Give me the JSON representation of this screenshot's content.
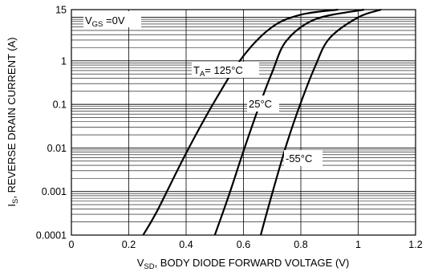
{
  "chart_data": {
    "type": "line",
    "x_scale": "linear",
    "y_scale": "log",
    "xlim": [
      0,
      1.2
    ],
    "ylim": [
      0.0001,
      15
    ],
    "x_ticks": [
      "0",
      "0.2",
      "0.4",
      "0.6",
      "0.8",
      "1",
      "1.2"
    ],
    "y_ticks": [
      "0.0001",
      "0.001",
      "0.01",
      "0.1",
      "1",
      "15"
    ],
    "x_tick_values": [
      0,
      0.2,
      0.4,
      0.6,
      0.8,
      1.0,
      1.2
    ],
    "y_tick_values": [
      0.0001,
      0.001,
      0.01,
      0.1,
      1,
      15
    ],
    "xlabel": {
      "pre": "V",
      "sub": "SD",
      "post": ", BODY DIODE FORWARD VOLTAGE (V)"
    },
    "ylabel": {
      "pre": "I",
      "sub": "S",
      "post": ", REVERSE DRAIN CURRENT (A)"
    },
    "grid": true,
    "condition": {
      "pre": "V",
      "sub": "GS",
      "post": " =0V"
    },
    "series": [
      {
        "name": "TA= 125°C",
        "label": {
          "pre": "T",
          "sub": "A",
          "post": "= 125°C"
        },
        "points": [
          [
            0.25,
            0.0001
          ],
          [
            0.3,
            0.00037
          ],
          [
            0.4,
            0.0076
          ],
          [
            0.5,
            0.12
          ],
          [
            0.6,
            1.3
          ],
          [
            0.7,
            6
          ],
          [
            0.8,
            11.5
          ],
          [
            0.93,
            15
          ]
        ]
      },
      {
        "name": "25°C",
        "label": {
          "pre": "",
          "sub": "",
          "post": "25°C"
        },
        "points": [
          [
            0.5,
            0.0001
          ],
          [
            0.55,
            0.00085
          ],
          [
            0.6,
            0.0085
          ],
          [
            0.65,
            0.075
          ],
          [
            0.7,
            0.55
          ],
          [
            0.75,
            2.9
          ],
          [
            0.85,
            9
          ],
          [
            1.02,
            15
          ]
        ]
      },
      {
        "name": "-55°C",
        "label": {
          "pre": "",
          "sub": "",
          "post": "-55°C"
        },
        "points": [
          [
            0.66,
            0.0001
          ],
          [
            0.7,
            0.0009
          ],
          [
            0.75,
            0.012
          ],
          [
            0.8,
            0.11
          ],
          [
            0.85,
            0.75
          ],
          [
            0.9,
            3.3
          ],
          [
            1.0,
            10
          ],
          [
            1.08,
            15
          ]
        ]
      }
    ]
  }
}
